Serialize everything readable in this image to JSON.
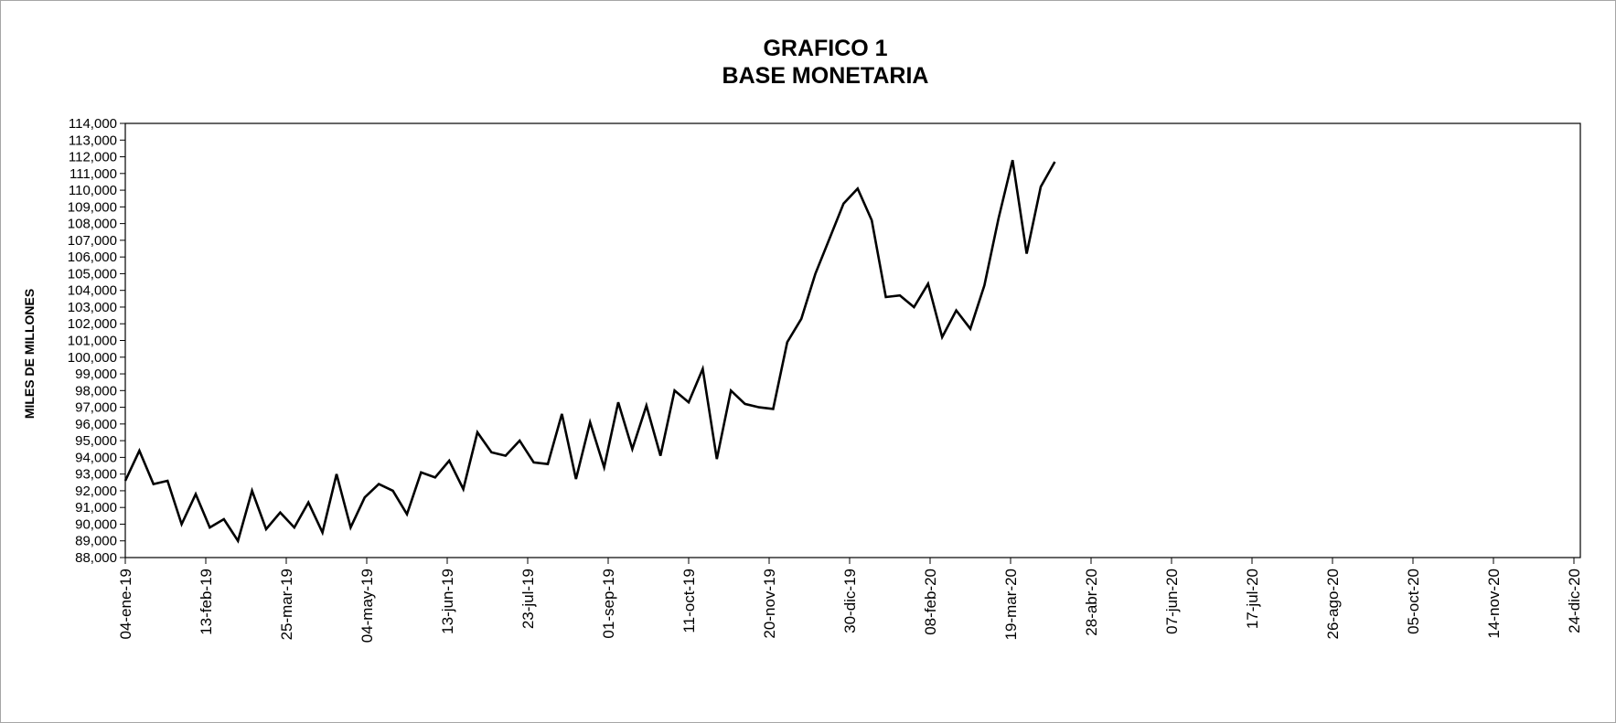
{
  "chart_data": {
    "type": "line",
    "title": "GRAFICO 1",
    "subtitle": "BASE MONETARIA",
    "xlabel": "",
    "ylabel": "MILES DE MILLONES",
    "ylim": [
      88000,
      114000
    ],
    "y_ticks": [
      "88,000",
      "89,000",
      "90,000",
      "91,000",
      "92,000",
      "93,000",
      "94,000",
      "95,000",
      "96,000",
      "97,000",
      "98,000",
      "99,000",
      "100,000",
      "101,000",
      "102,000",
      "103,000",
      "104,000",
      "105,000",
      "106,000",
      "107,000",
      "108,000",
      "109,000",
      "110,000",
      "111,000",
      "112,000",
      "113,000",
      "114,000"
    ],
    "x_ticks": [
      "04-ene-19",
      "13-feb-19",
      "25-mar-19",
      "04-may-19",
      "13-jun-19",
      "23-jul-19",
      "01-sep-19",
      "11-oct-19",
      "20-nov-19",
      "30-dic-19",
      "08-feb-20",
      "19-mar-20",
      "28-abr-20",
      "07-jun-20",
      "17-jul-20",
      "26-ago-20",
      "05-oct-20",
      "14-nov-20",
      "24-dic-20"
    ],
    "grid": false,
    "line_color": "#000000",
    "series": [
      {
        "x": [
          "04-ene-19",
          "11-ene-19",
          "18-ene-19",
          "25-ene-19",
          "01-feb-19",
          "08-feb-19",
          "15-feb-19",
          "22-feb-19",
          "01-mar-19",
          "08-mar-19",
          "15-mar-19",
          "22-mar-19",
          "29-mar-19",
          "05-abr-19",
          "12-abr-19",
          "19-abr-19",
          "26-abr-19",
          "03-may-19",
          "10-may-19",
          "17-may-19",
          "24-may-19",
          "31-may-19",
          "07-jun-19",
          "14-jun-19",
          "21-jun-19",
          "28-jun-19",
          "05-jul-19",
          "12-jul-19",
          "19-jul-19",
          "26-jul-19",
          "02-ago-19",
          "09-ago-19",
          "16-ago-19",
          "23-ago-19",
          "30-ago-19",
          "06-sep-19",
          "13-sep-19",
          "20-sep-19",
          "27-sep-19",
          "04-oct-19",
          "11-oct-19",
          "18-oct-19",
          "25-oct-19",
          "01-nov-19",
          "08-nov-19",
          "15-nov-19",
          "22-nov-19",
          "29-nov-19",
          "06-dic-19",
          "13-dic-19",
          "20-dic-19",
          "27-dic-19",
          "03-ene-20",
          "10-ene-20",
          "17-ene-20",
          "24-ene-20",
          "31-ene-20",
          "07-feb-20",
          "14-feb-20",
          "21-feb-20",
          "28-feb-20",
          "06-mar-20",
          "13-mar-20",
          "20-mar-20",
          "27-mar-20",
          "03-abr-20",
          "10-abr-20"
        ],
        "values": [
          92600,
          94400,
          92400,
          92600,
          90000,
          91800,
          89800,
          90300,
          89000,
          92000,
          89700,
          90700,
          89800,
          91300,
          89500,
          93000,
          89800,
          91600,
          92400,
          92000,
          90600,
          93100,
          92800,
          93800,
          92100,
          95500,
          94300,
          94100,
          95000,
          93700,
          93600,
          96600,
          92700,
          96100,
          93400,
          97300,
          94500,
          97100,
          94100,
          98000,
          97300,
          99300,
          93900,
          98000,
          97200,
          97000,
          96900,
          100900,
          102300,
          105000,
          107100,
          109200,
          110100,
          108200,
          103600,
          103700,
          103000,
          104400,
          101200,
          102800,
          101700,
          104300,
          108300,
          111800,
          106200,
          110200,
          111700
        ]
      }
    ]
  }
}
